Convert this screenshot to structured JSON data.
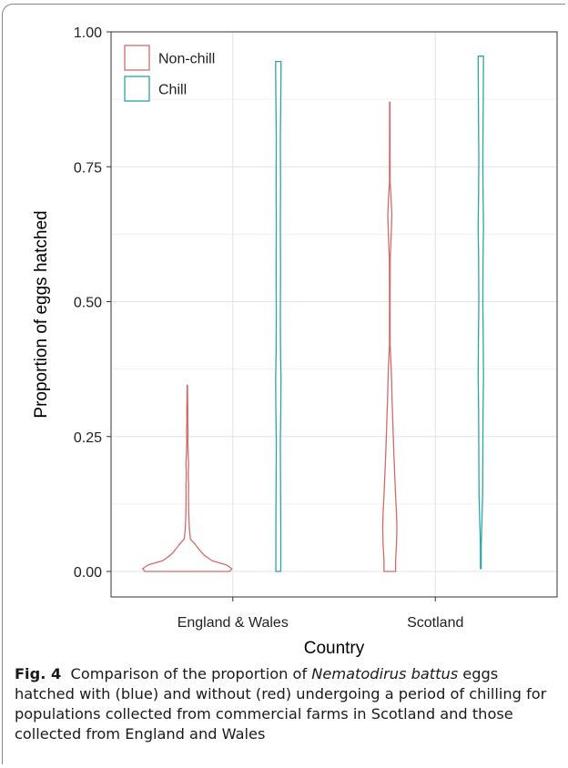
{
  "chart_data": {
    "type": "violin",
    "xlabel": "Country",
    "ylabel": "Proportion of eggs hatched",
    "categories": [
      "England & Wales",
      "Scotland"
    ],
    "ylim": [
      0,
      1
    ],
    "yticks": [
      "0.00",
      "0.25",
      "0.50",
      "0.75",
      "1.00"
    ],
    "ytick_values": [
      0,
      0.25,
      0.5,
      0.75,
      1.0
    ],
    "grid": true,
    "legend_position": "top-left",
    "series": [
      {
        "name": "Non-chill",
        "color": "#d46a6a",
        "violins": [
          {
            "category": "England & Wales",
            "max": 0.345,
            "profile": [
              [
                0.0,
                0.95
              ],
              [
                0.005,
                1.0
              ],
              [
                0.012,
                0.88
              ],
              [
                0.02,
                0.55
              ],
              [
                0.03,
                0.38
              ],
              [
                0.04,
                0.27
              ],
              [
                0.05,
                0.18
              ],
              [
                0.06,
                0.07
              ],
              [
                0.08,
                0.045
              ],
              [
                0.1,
                0.035
              ],
              [
                0.12,
                0.03
              ],
              [
                0.14,
                0.028
              ],
              [
                0.16,
                0.03
              ],
              [
                0.18,
                0.022
              ],
              [
                0.2,
                0.03
              ],
              [
                0.22,
                0.018
              ],
              [
                0.24,
                0.012
              ],
              [
                0.26,
                0.016
              ],
              [
                0.28,
                0.01
              ],
              [
                0.3,
                0.012
              ],
              [
                0.32,
                0.008
              ],
              [
                0.345,
                0.005
              ]
            ]
          },
          {
            "category": "Scotland",
            "max": 0.87,
            "profile": [
              [
                0.0,
                0.13
              ],
              [
                0.02,
                0.13
              ],
              [
                0.05,
                0.15
              ],
              [
                0.08,
                0.16
              ],
              [
                0.11,
                0.15
              ],
              [
                0.14,
                0.13
              ],
              [
                0.18,
                0.11
              ],
              [
                0.22,
                0.09
              ],
              [
                0.27,
                0.07
              ],
              [
                0.32,
                0.05
              ],
              [
                0.37,
                0.035
              ],
              [
                0.42,
                0.008
              ],
              [
                0.5,
                0.007
              ],
              [
                0.58,
                0.01
              ],
              [
                0.62,
                0.03
              ],
              [
                0.66,
                0.045
              ],
              [
                0.69,
                0.03
              ],
              [
                0.72,
                0.008
              ],
              [
                0.8,
                0.006
              ],
              [
                0.87,
                0.004
              ]
            ]
          }
        ]
      },
      {
        "name": "Chill",
        "color": "#2aa5a8",
        "violins": [
          {
            "category": "England & Wales",
            "max": 0.945,
            "profile": [
              [
                0.0,
                0.055
              ],
              [
                0.08,
                0.055
              ],
              [
                0.16,
                0.05
              ],
              [
                0.24,
                0.045
              ],
              [
                0.3,
                0.055
              ],
              [
                0.36,
                0.06
              ],
              [
                0.4,
                0.05
              ],
              [
                0.48,
                0.045
              ],
              [
                0.56,
                0.05
              ],
              [
                0.64,
                0.045
              ],
              [
                0.72,
                0.05
              ],
              [
                0.8,
                0.045
              ],
              [
                0.88,
                0.055
              ],
              [
                0.92,
                0.06
              ],
              [
                0.945,
                0.06
              ]
            ]
          },
          {
            "category": "Scotland",
            "max": 0.955,
            "profile": [
              [
                0.005,
                0.008
              ],
              [
                0.05,
                0.01
              ],
              [
                0.08,
                0.02
              ],
              [
                0.14,
                0.04
              ],
              [
                0.22,
                0.045
              ],
              [
                0.3,
                0.05
              ],
              [
                0.36,
                0.06
              ],
              [
                0.42,
                0.055
              ],
              [
                0.5,
                0.045
              ],
              [
                0.58,
                0.05
              ],
              [
                0.64,
                0.06
              ],
              [
                0.7,
                0.05
              ],
              [
                0.76,
                0.045
              ],
              [
                0.82,
                0.05
              ],
              [
                0.88,
                0.055
              ],
              [
                0.955,
                0.06
              ]
            ]
          }
        ]
      }
    ]
  },
  "caption": {
    "label": "Fig. 4",
    "text_before": "Comparison of the proportion of ",
    "species": "Nematodirus battus",
    "text_after": " eggs hatched with (blue) and without (red) undergoing a period of chilling for populations collected from commercial farms in Scotland and those collected from England and Wales"
  }
}
